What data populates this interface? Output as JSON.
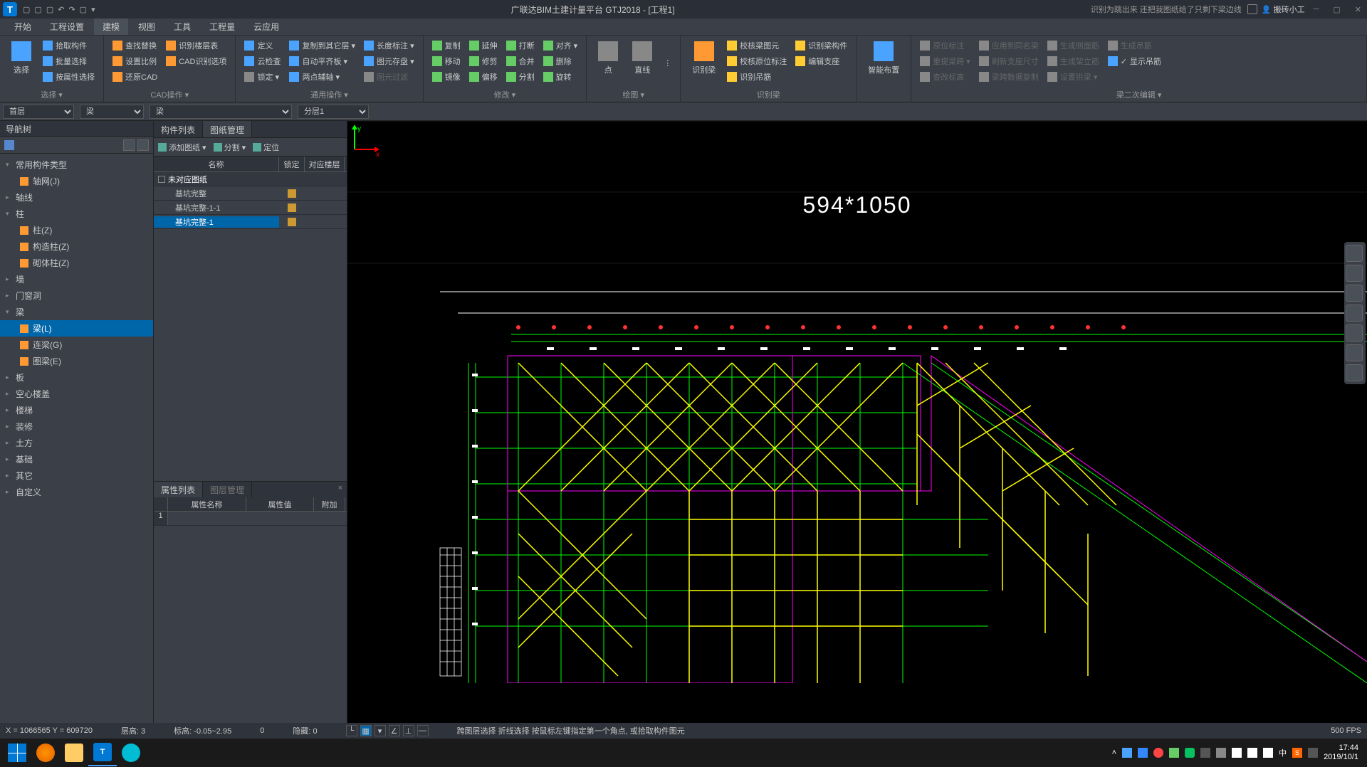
{
  "app": {
    "title": "广联达BIM土建计量平台 GTJ2018 - [工程1]",
    "hint": "识别为跳出来 还把我图纸给了只剩下梁边线",
    "user": "搬砖小工",
    "logo": "T"
  },
  "menu": {
    "tabs": [
      "开始",
      "工程设置",
      "建模",
      "视图",
      "工具",
      "工程量",
      "云应用"
    ],
    "active": 2
  },
  "ribbon": {
    "select": {
      "big": "选择",
      "items": [
        "拾取构件",
        "批量选择",
        "按属性选择"
      ],
      "label": "选择 ▾"
    },
    "cad": {
      "items": [
        "查找替换",
        "设置比例",
        "还原CAD",
        "识别楼层表",
        "CAD识别选项"
      ],
      "label": "CAD操作 ▾"
    },
    "general": {
      "items": [
        "定义",
        "云检查",
        "锁定 ▾",
        "复制到其它层 ▾",
        "自动平齐板 ▾",
        "两点辅轴 ▾",
        "长度标注 ▾",
        "图元存盘 ▾",
        "图元过滤"
      ],
      "label": "通用操作 ▾"
    },
    "modify": {
      "items": [
        "复制",
        "移动",
        "镜像",
        "延伸",
        "修剪",
        "偏移",
        "打断",
        "合并",
        "分割",
        "对齐 ▾",
        "删除",
        "旋转"
      ],
      "label": "修改 ▾"
    },
    "draw": {
      "items": [
        "点",
        "直线",
        "识别梁"
      ],
      "label": "绘图 ▾"
    },
    "recog": {
      "items": [
        "校核梁图元",
        "校核原位标注",
        "识别吊筋",
        "识别梁构件",
        "编辑支座"
      ],
      "label": "识别梁"
    },
    "smart": {
      "big": "智能布置",
      "label": ""
    },
    "beam2": {
      "items": [
        "原位标注",
        "重提梁跨 ▾",
        "查改标高",
        "应用到同名梁",
        "刷新支座尺寸",
        "梁跨数据复制",
        "生成侧面筋",
        "生成架立筋",
        "设置拱梁 ▾",
        "生成吊筋",
        "显示吊筋"
      ],
      "label": "梁二次编辑 ▾"
    }
  },
  "selectors": {
    "floor": "首层",
    "cat": "梁",
    "type": "梁",
    "layer": "分层1"
  },
  "nav": {
    "title": "导航树",
    "items": [
      {
        "label": "常用构件类型",
        "lvl": 1,
        "exp": "▾"
      },
      {
        "label": "轴网(J)",
        "lvl": 2,
        "ico": "grid"
      },
      {
        "label": "轴线",
        "lvl": 1,
        "exp": "▸"
      },
      {
        "label": "柱",
        "lvl": 1,
        "exp": "▾"
      },
      {
        "label": "柱(Z)",
        "lvl": 2,
        "ico": "col"
      },
      {
        "label": "构造柱(Z)",
        "lvl": 2,
        "ico": "col"
      },
      {
        "label": "砌体柱(Z)",
        "lvl": 2,
        "ico": "col"
      },
      {
        "label": "墙",
        "lvl": 1,
        "exp": "▸"
      },
      {
        "label": "门窗洞",
        "lvl": 1,
        "exp": "▸"
      },
      {
        "label": "梁",
        "lvl": 1,
        "exp": "▾"
      },
      {
        "label": "梁(L)",
        "lvl": 2,
        "ico": "beam",
        "active": true
      },
      {
        "label": "连梁(G)",
        "lvl": 2,
        "ico": "beam"
      },
      {
        "label": "圈梁(E)",
        "lvl": 2,
        "ico": "beam"
      },
      {
        "label": "板",
        "lvl": 1,
        "exp": "▸"
      },
      {
        "label": "空心楼盖",
        "lvl": 1,
        "exp": "▸"
      },
      {
        "label": "楼梯",
        "lvl": 1,
        "exp": "▸"
      },
      {
        "label": "装修",
        "lvl": 1,
        "exp": "▸"
      },
      {
        "label": "土方",
        "lvl": 1,
        "exp": "▸"
      },
      {
        "label": "基础",
        "lvl": 1,
        "exp": "▸"
      },
      {
        "label": "其它",
        "lvl": 1,
        "exp": "▸"
      },
      {
        "label": "自定义",
        "lvl": 1,
        "exp": "▸"
      }
    ]
  },
  "mid": {
    "tabs": [
      "构件列表",
      "图纸管理"
    ],
    "activeTab": 1,
    "toolbar": [
      "添加图纸 ▾",
      "分割 ▾",
      "定位"
    ],
    "headers": [
      "名称",
      "锁定",
      "对应楼层"
    ],
    "rows": [
      {
        "label": "未对应图纸",
        "group": true
      },
      {
        "label": "基坑完整",
        "lock": true
      },
      {
        "label": "基坑完整-1-1",
        "lock": true
      },
      {
        "label": "基坑完整-1",
        "lock": true,
        "selected": true
      }
    ]
  },
  "prop": {
    "tabs": [
      "属性列表",
      "图层管理"
    ],
    "activeTab": 0,
    "headers": [
      "属性名称",
      "属性值",
      "附加"
    ],
    "row1": "1"
  },
  "canvas": {
    "dimtext": "594*1050",
    "colors": {
      "grid": "#00ff00",
      "beam": "#ffff00",
      "outline": "#ff00ff",
      "bg": "#000000",
      "mark": "#ff3333",
      "white": "#ffffff"
    }
  },
  "status": {
    "coord": "X = 1066565 Y = 609720",
    "floor": "层高:   3",
    "elev": "标高:   -0.05~2.95",
    "zero": "0",
    "hide": "隐藏: 0",
    "hint": "跨图层选择    折线选择  按鼠标左键指定第一个角点, 或拾取构件图元",
    "fps": "500 FPS"
  },
  "taskbar": {
    "time": "17:44",
    "date": "2019/10/1",
    "ime": "中"
  }
}
